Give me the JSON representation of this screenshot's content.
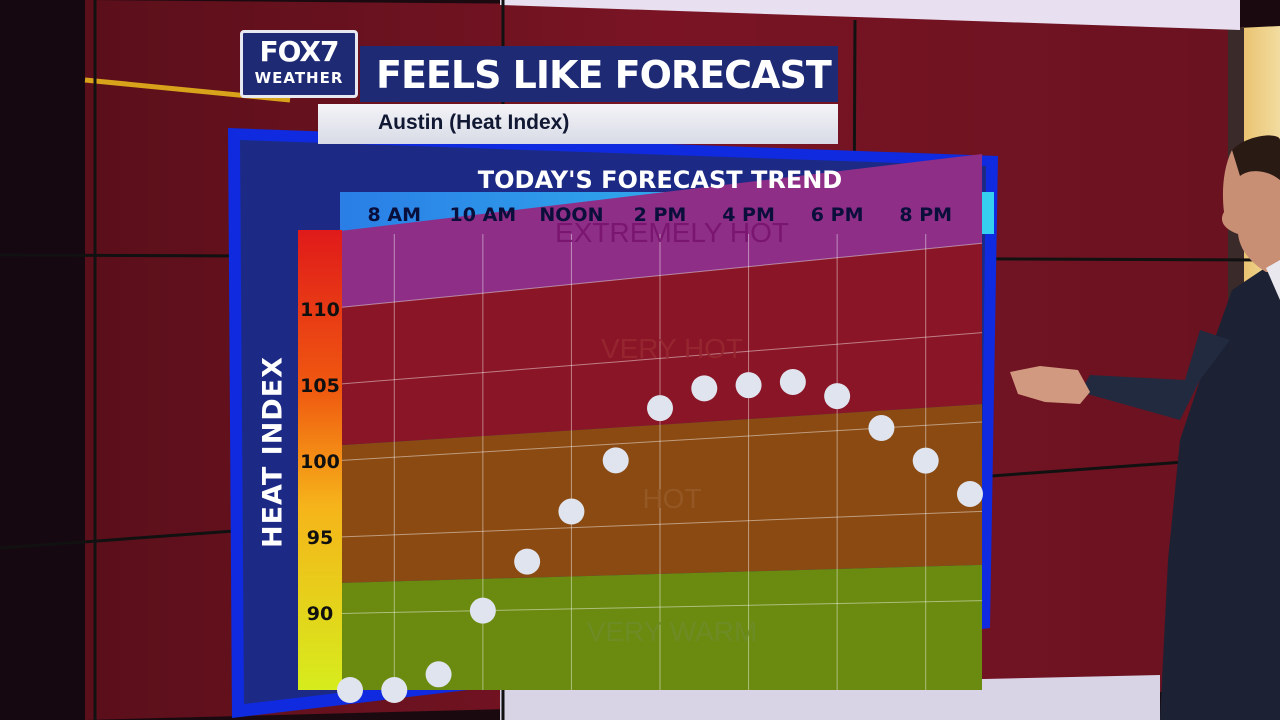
{
  "brand": {
    "logo_main": "FOX7",
    "logo_sub": "WEATHER"
  },
  "header": {
    "title": "FEELS LIKE FORECAST",
    "subtitle": "Austin (Heat Index)"
  },
  "chart_data": {
    "type": "scatter",
    "title": "TODAY'S FORECAST TREND",
    "ylabel": "HEAT INDEX",
    "x_tick_labels": [
      "8 AM",
      "10 AM",
      "NOON",
      "2 PM",
      "4 PM",
      "6 PM",
      "8 PM"
    ],
    "y_ticks": [
      90,
      95,
      100,
      105,
      110
    ],
    "ylim": [
      85,
      115
    ],
    "x": [
      "7 AM",
      "8 AM",
      "9 AM",
      "10 AM",
      "11 AM",
      "NOON",
      "1 PM",
      "2 PM",
      "3 PM",
      "4 PM",
      "5 PM",
      "6 PM",
      "7 PM",
      "8 PM",
      "9 PM"
    ],
    "values": [
      85,
      85,
      86,
      90,
      93,
      96,
      99,
      102,
      103,
      103,
      103,
      102,
      100,
      98,
      96
    ],
    "bands": [
      {
        "label": "EXTREMELY HOT",
        "from": 110,
        "to": 115,
        "color": "#8e2e86"
      },
      {
        "label": "VERY HOT",
        "from": 101,
        "to": 110,
        "color": "#8a1526"
      },
      {
        "label": "HOT",
        "from": 92,
        "to": 101,
        "color": "#8a4a12"
      },
      {
        "label": "VERY WARM",
        "from": 85,
        "to": 92,
        "color": "#6a8a10"
      }
    ],
    "grid": true,
    "marker_color": "#dfe4ee"
  }
}
